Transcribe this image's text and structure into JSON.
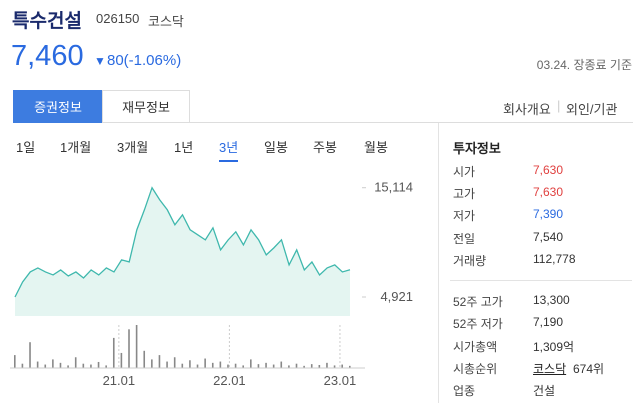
{
  "header": {
    "name": "특수건설",
    "code": "026150",
    "market": "코스닥"
  },
  "price": {
    "current": "7,460",
    "change_arrow": "▼",
    "change": "80(-1.06%)",
    "basis": "03.24. 장종료 기준"
  },
  "tabs": {
    "main": [
      "증권정보",
      "재무정보"
    ],
    "links": [
      "회사개요",
      "외인/기관"
    ]
  },
  "periods": [
    "1일",
    "1개월",
    "3개월",
    "1년",
    "3년",
    "일봉",
    "주봉",
    "월봉"
  ],
  "chart": {
    "type": "line",
    "values": [
      4921,
      6324,
      7259,
      7633,
      7259,
      6978,
      7446,
      6885,
      7259,
      6698,
      7446,
      6978,
      7633,
      7259,
      8381,
      8194,
      11186,
      13056,
      15114,
      13991,
      13056,
      11653,
      12588,
      11186,
      10718,
      10251,
      11373,
      9316,
      10251,
      10999,
      9783,
      11186,
      10251,
      8848,
      9503,
      10251,
      7913,
      9316,
      7446,
      8194,
      6978,
      7633,
      7913,
      7259,
      7460
    ],
    "ylim": [
      3150,
      16300
    ],
    "yticks": [
      {
        "value": 15114,
        "label": "15,114"
      },
      {
        "value": 4921,
        "label": "4,921"
      }
    ],
    "volume": [
      30,
      10,
      60,
      15,
      8,
      20,
      12,
      6,
      25,
      10,
      8,
      14,
      6,
      70,
      35,
      90,
      100,
      40,
      20,
      30,
      15,
      25,
      10,
      18,
      8,
      22,
      12,
      15,
      8,
      10,
      6,
      20,
      9,
      12,
      8,
      15,
      6,
      10,
      5,
      9,
      7,
      12,
      6,
      8,
      5
    ],
    "volume_ylim": [
      0,
      100
    ],
    "x_labels": [
      "21.01",
      "22.01",
      "23.01"
    ]
  },
  "info": {
    "title": "투자정보",
    "rows": [
      [
        "시가",
        "7,630"
      ],
      [
        "고가",
        "7,630"
      ],
      [
        "저가",
        "7,390"
      ],
      [
        "전일",
        "7,540"
      ],
      [
        "거래량",
        "112,778"
      ]
    ],
    "rows2": [
      [
        "52주 고가",
        "13,300"
      ],
      [
        "52주 저가",
        "7,190"
      ],
      [
        "시가총액",
        "1,309억"
      ],
      [
        "시총순위",
        "코스닥",
        "674위"
      ],
      [
        "업종",
        "건설"
      ]
    ]
  }
}
